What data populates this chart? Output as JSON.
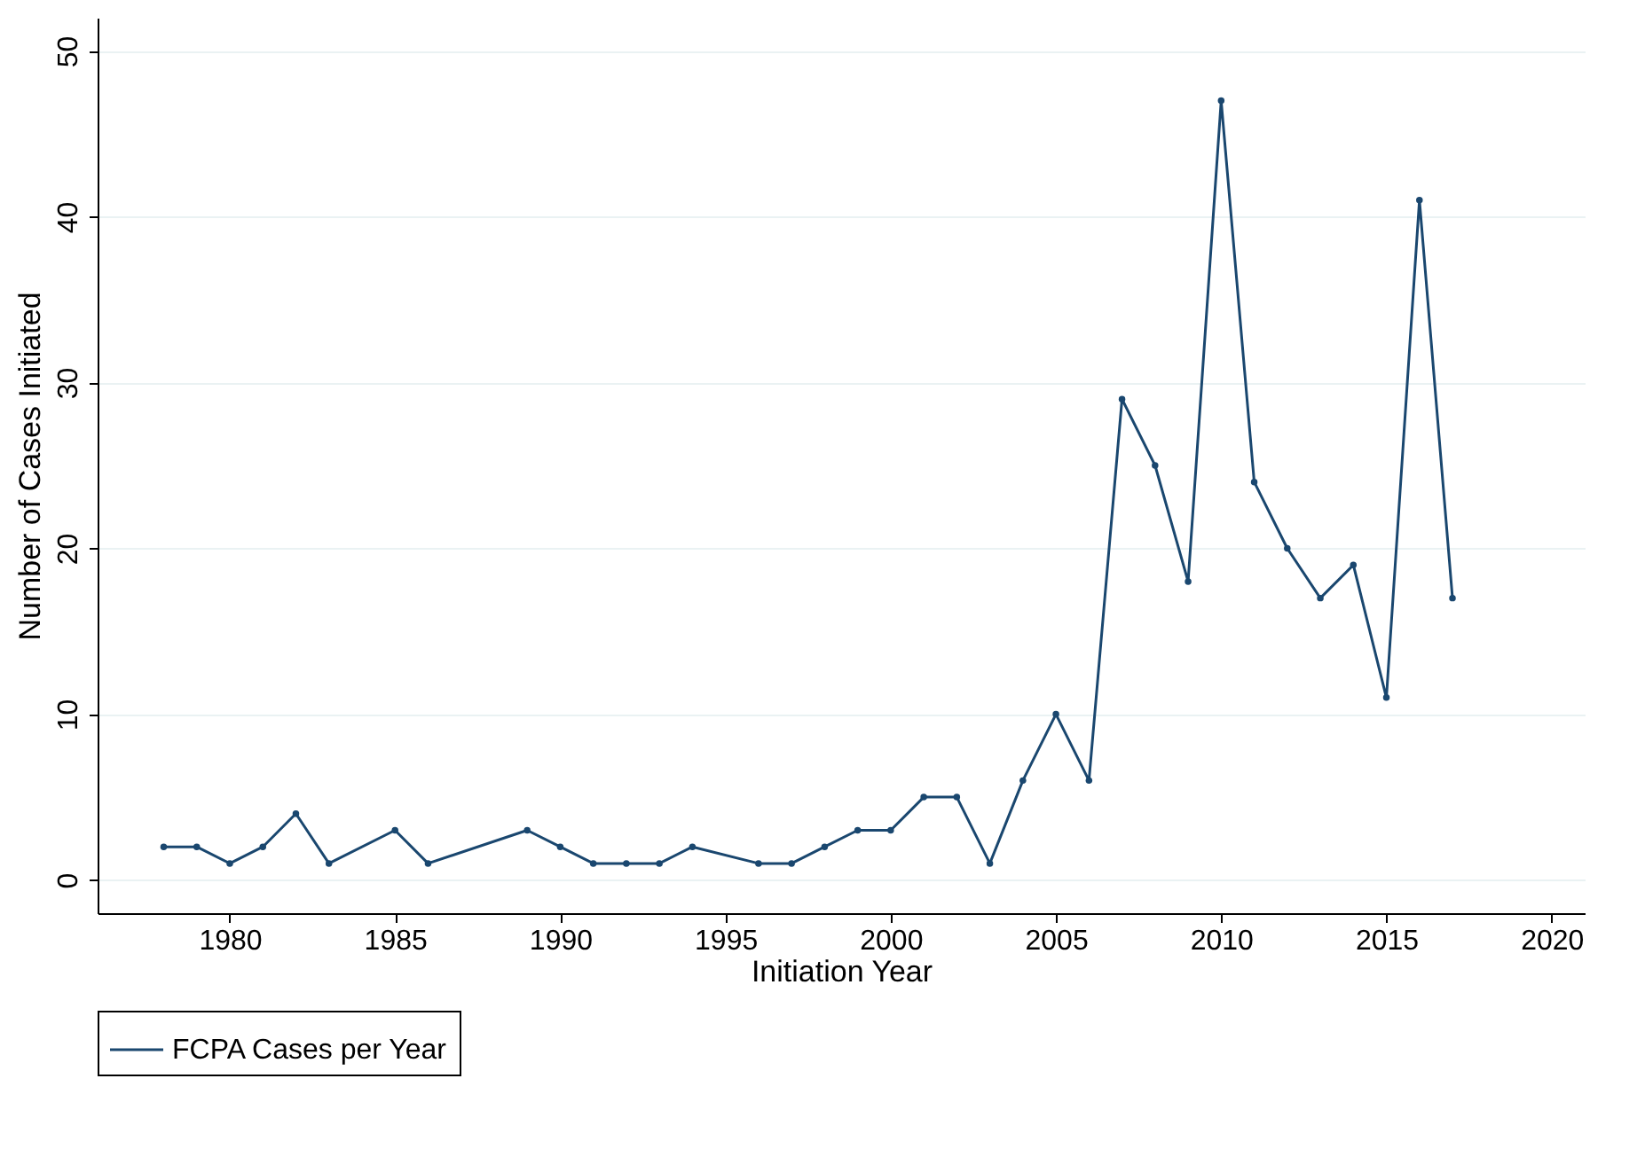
{
  "chart_data": {
    "type": "line",
    "xlabel": "Initiation Year",
    "ylabel": "Number of Cases Initiated",
    "x": [
      1978,
      1979,
      1980,
      1981,
      1982,
      1983,
      1985,
      1986,
      1989,
      1990,
      1991,
      1992,
      1993,
      1994,
      1996,
      1997,
      1998,
      1999,
      2000,
      2001,
      2002,
      2003,
      2004,
      2005,
      2006,
      2007,
      2008,
      2009,
      2010,
      2011,
      2012,
      2013,
      2014,
      2015,
      2016,
      2017
    ],
    "series": [
      {
        "name": "FCPA Cases per Year",
        "color": "#1a476f",
        "values": [
          2,
          2,
          1,
          2,
          4,
          1,
          3,
          1,
          3,
          2,
          1,
          1,
          1,
          2,
          1,
          1,
          2,
          3,
          3,
          5,
          5,
          1,
          6,
          10,
          6,
          29,
          25,
          18,
          47,
          24,
          20,
          17,
          19,
          11,
          41,
          17
        ]
      }
    ],
    "xlim": [
      1976,
      2021
    ],
    "xticks": [
      1980,
      1985,
      1990,
      1995,
      2000,
      2005,
      2010,
      2015,
      2020
    ],
    "ylim": [
      -2,
      52
    ],
    "yticks": [
      0,
      10,
      20,
      30,
      40,
      50
    ],
    "grid": "y",
    "legend": "bottom",
    "marker": "circle",
    "line_style": "solid"
  }
}
